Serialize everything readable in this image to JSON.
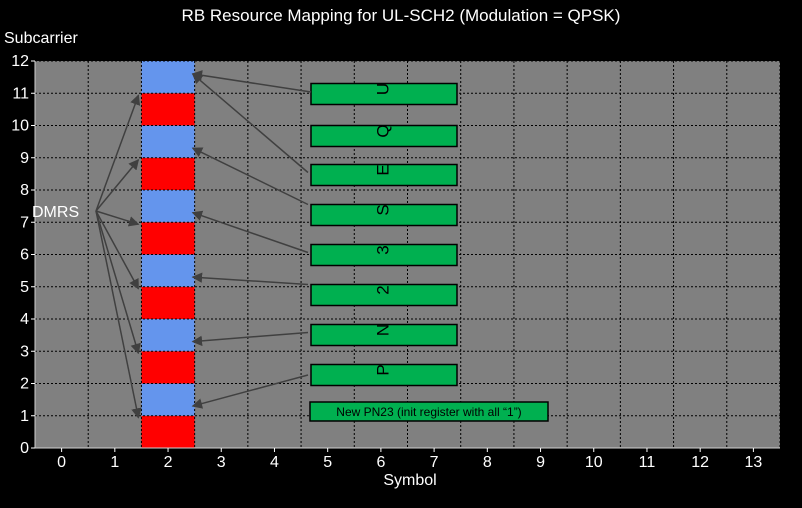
{
  "chart_data": {
    "type": "heatmap",
    "title": "RB Resource Mapping for UL-SCH2 (Modulation = QPSK)",
    "xlabel": "Symbol",
    "ylabel": "Subcarrier",
    "xlim": [
      0,
      13
    ],
    "ylim": [
      0,
      12
    ],
    "x_ticks": [
      "0",
      "1",
      "2",
      "3",
      "4",
      "5",
      "6",
      "7",
      "8",
      "9",
      "10",
      "11",
      "12",
      "13"
    ],
    "y_ticks": [
      "0",
      "1",
      "2",
      "3",
      "4",
      "5",
      "6",
      "7",
      "8",
      "9",
      "10",
      "11",
      "12"
    ],
    "grid": true,
    "cells": [
      {
        "symbol": 2,
        "subcarrier": 0,
        "type": "DMRS",
        "color": "#ff0000"
      },
      {
        "symbol": 2,
        "subcarrier": 1,
        "type": "data",
        "color": "#6495ed"
      },
      {
        "symbol": 2,
        "subcarrier": 2,
        "type": "DMRS",
        "color": "#ff0000"
      },
      {
        "symbol": 2,
        "subcarrier": 3,
        "type": "data",
        "color": "#6495ed"
      },
      {
        "symbol": 2,
        "subcarrier": 4,
        "type": "DMRS",
        "color": "#ff0000"
      },
      {
        "symbol": 2,
        "subcarrier": 5,
        "type": "data",
        "color": "#6495ed"
      },
      {
        "symbol": 2,
        "subcarrier": 6,
        "type": "DMRS",
        "color": "#ff0000"
      },
      {
        "symbol": 2,
        "subcarrier": 7,
        "type": "data",
        "color": "#6495ed"
      },
      {
        "symbol": 2,
        "subcarrier": 8,
        "type": "DMRS",
        "color": "#ff0000"
      },
      {
        "symbol": 2,
        "subcarrier": 9,
        "type": "data",
        "color": "#6495ed"
      },
      {
        "symbol": 2,
        "subcarrier": 10,
        "type": "DMRS",
        "color": "#ff0000"
      },
      {
        "symbol": 2,
        "subcarrier": 11,
        "type": "data",
        "color": "#6495ed"
      }
    ],
    "dmrs_label": "DMRS",
    "dmrs_subcarriers": [
      0,
      2,
      4,
      6,
      8,
      10
    ],
    "data_letters": [
      {
        "letter": "P",
        "subcarrier": 1
      },
      {
        "letter": "N",
        "subcarrier": 3
      },
      {
        "letter": "2",
        "subcarrier": 5
      },
      {
        "letter": "3",
        "subcarrier": 7
      },
      {
        "letter": "S",
        "subcarrier": 9
      },
      {
        "letter": "E",
        "subcarrier": 11
      },
      {
        "letter": "Q",
        "subcarrier": null
      },
      {
        "letter": "U",
        "subcarrier": 11
      }
    ],
    "pn_note": "New PN23 (init register with all “1”)",
    "colors": {
      "background": "#000000",
      "plot_bg": "#808080",
      "grid": "#000000",
      "dmrs": "#ff0000",
      "data": "#6495ed",
      "letter_box": "#00b050",
      "arrow": "#404040"
    }
  }
}
